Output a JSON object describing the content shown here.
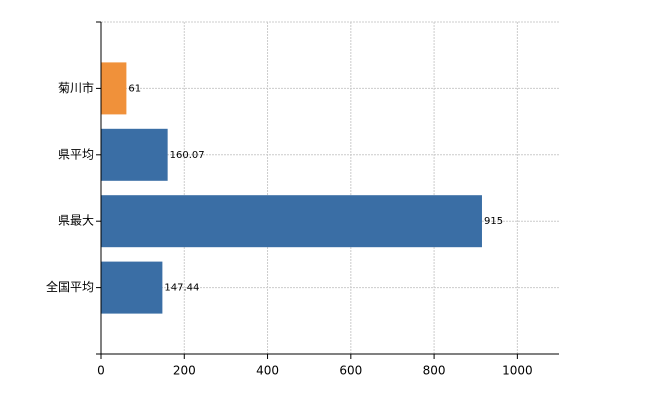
{
  "chart_data": {
    "type": "bar",
    "orientation": "horizontal",
    "categories": [
      "菊川市",
      "県平均",
      "県最大",
      "全国平均"
    ],
    "values": [
      61,
      160.07,
      915,
      147.44
    ],
    "colors": [
      "#f0913a",
      "#3a6ea5",
      "#3a6ea5",
      "#3a6ea5"
    ],
    "xlim": [
      0,
      1100
    ],
    "xticks": [
      0,
      200,
      400,
      600,
      800,
      1000
    ],
    "grid": true
  }
}
